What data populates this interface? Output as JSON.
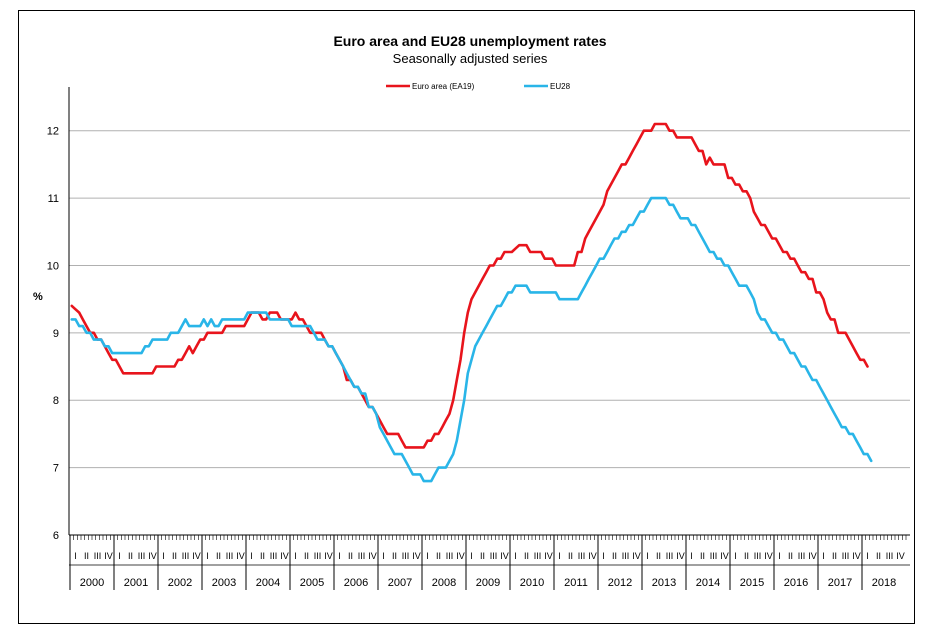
{
  "chart_data": {
    "type": "line",
    "title": "Euro area and EU28 unemployment rates",
    "subtitle": "Seasonally adjusted series",
    "ylabel": "%",
    "ylim": [
      6,
      12.5
    ],
    "yticks": [
      "6",
      "7",
      "8",
      "9",
      "10",
      "11",
      "12"
    ],
    "grid": true,
    "legend_position": "top-center",
    "quarter_labels": [
      "I",
      "II",
      "III",
      "IV"
    ],
    "years": [
      "2000",
      "2001",
      "2002",
      "2003",
      "2004",
      "2005",
      "2006",
      "2007",
      "2008",
      "2009",
      "2010",
      "2011",
      "2012",
      "2013",
      "2014",
      "2015",
      "2016",
      "2017",
      "2018"
    ],
    "x_start": "2000-01",
    "series": [
      {
        "name": "Euro area (EA19)",
        "color": "#e8141c",
        "values": [
          9.4,
          9.35,
          9.3,
          9.2,
          9.1,
          9.0,
          9.0,
          8.9,
          8.9,
          8.8,
          8.7,
          8.6,
          8.6,
          8.5,
          8.4,
          8.4,
          8.4,
          8.4,
          8.4,
          8.4,
          8.4,
          8.4,
          8.4,
          8.5,
          8.5,
          8.5,
          8.5,
          8.5,
          8.5,
          8.6,
          8.6,
          8.7,
          8.8,
          8.7,
          8.8,
          8.9,
          8.9,
          9.0,
          9.0,
          9.0,
          9.0,
          9.0,
          9.1,
          9.1,
          9.1,
          9.1,
          9.1,
          9.1,
          9.2,
          9.3,
          9.3,
          9.3,
          9.2,
          9.2,
          9.3,
          9.3,
          9.3,
          9.2,
          9.2,
          9.2,
          9.2,
          9.3,
          9.2,
          9.2,
          9.1,
          9.0,
          9.0,
          9.0,
          9.0,
          8.9,
          8.8,
          8.8,
          8.7,
          8.6,
          8.5,
          8.3,
          8.3,
          8.2,
          8.2,
          8.1,
          8.0,
          7.9,
          7.9,
          7.8,
          7.7,
          7.6,
          7.5,
          7.5,
          7.5,
          7.5,
          7.4,
          7.3,
          7.3,
          7.3,
          7.3,
          7.3,
          7.3,
          7.4,
          7.4,
          7.5,
          7.5,
          7.6,
          7.7,
          7.8,
          8.0,
          8.3,
          8.6,
          9.0,
          9.3,
          9.5,
          9.6,
          9.7,
          9.8,
          9.9,
          10.0,
          10.0,
          10.1,
          10.1,
          10.2,
          10.2,
          10.2,
          10.25,
          10.3,
          10.3,
          10.3,
          10.2,
          10.2,
          10.2,
          10.2,
          10.1,
          10.1,
          10.1,
          10.0,
          10.0,
          10.0,
          10.0,
          10.0,
          10.0,
          10.2,
          10.2,
          10.4,
          10.5,
          10.6,
          10.7,
          10.8,
          10.9,
          11.1,
          11.2,
          11.3,
          11.4,
          11.5,
          11.5,
          11.6,
          11.7,
          11.8,
          11.9,
          12.0,
          12.0,
          12.0,
          12.1,
          12.1,
          12.1,
          12.1,
          12.0,
          12.0,
          11.9,
          11.9,
          11.9,
          11.9,
          11.9,
          11.8,
          11.7,
          11.7,
          11.5,
          11.6,
          11.5,
          11.5,
          11.5,
          11.5,
          11.3,
          11.3,
          11.2,
          11.2,
          11.1,
          11.1,
          11.0,
          10.8,
          10.7,
          10.6,
          10.6,
          10.5,
          10.4,
          10.4,
          10.3,
          10.2,
          10.2,
          10.1,
          10.1,
          10.0,
          9.9,
          9.9,
          9.8,
          9.8,
          9.6,
          9.6,
          9.5,
          9.3,
          9.2,
          9.2,
          9.0,
          9.0,
          9.0,
          8.9,
          8.8,
          8.7,
          8.6,
          8.6,
          8.5
        ]
      },
      {
        "name": "EU28",
        "color": "#29b5e8",
        "values": [
          9.2,
          9.2,
          9.1,
          9.1,
          9.0,
          9.0,
          8.9,
          8.9,
          8.9,
          8.8,
          8.8,
          8.7,
          8.7,
          8.7,
          8.7,
          8.7,
          8.7,
          8.7,
          8.7,
          8.7,
          8.8,
          8.8,
          8.9,
          8.9,
          8.9,
          8.9,
          8.9,
          9.0,
          9.0,
          9.0,
          9.1,
          9.2,
          9.1,
          9.1,
          9.1,
          9.1,
          9.2,
          9.1,
          9.2,
          9.1,
          9.1,
          9.2,
          9.2,
          9.2,
          9.2,
          9.2,
          9.2,
          9.2,
          9.3,
          9.3,
          9.3,
          9.3,
          9.3,
          9.3,
          9.2,
          9.2,
          9.2,
          9.2,
          9.2,
          9.2,
          9.1,
          9.1,
          9.1,
          9.1,
          9.1,
          9.1,
          9.0,
          8.9,
          8.9,
          8.9,
          8.8,
          8.8,
          8.7,
          8.6,
          8.5,
          8.4,
          8.3,
          8.2,
          8.2,
          8.1,
          8.1,
          7.9,
          7.9,
          7.8,
          7.6,
          7.5,
          7.4,
          7.3,
          7.2,
          7.2,
          7.2,
          7.1,
          7.0,
          6.9,
          6.9,
          6.9,
          6.8,
          6.8,
          6.8,
          6.9,
          7.0,
          7.0,
          7.0,
          7.1,
          7.2,
          7.4,
          7.7,
          8.0,
          8.4,
          8.6,
          8.8,
          8.9,
          9.0,
          9.1,
          9.2,
          9.3,
          9.4,
          9.4,
          9.5,
          9.6,
          9.6,
          9.7,
          9.7,
          9.7,
          9.7,
          9.6,
          9.6,
          9.6,
          9.6,
          9.6,
          9.6,
          9.6,
          9.6,
          9.5,
          9.5,
          9.5,
          9.5,
          9.5,
          9.5,
          9.6,
          9.7,
          9.8,
          9.9,
          10.0,
          10.1,
          10.1,
          10.2,
          10.3,
          10.4,
          10.4,
          10.5,
          10.5,
          10.6,
          10.6,
          10.7,
          10.8,
          10.8,
          10.9,
          11.0,
          11.0,
          11.0,
          11.0,
          11.0,
          10.9,
          10.9,
          10.8,
          10.7,
          10.7,
          10.7,
          10.6,
          10.6,
          10.5,
          10.4,
          10.3,
          10.2,
          10.2,
          10.1,
          10.1,
          10.0,
          10.0,
          9.9,
          9.8,
          9.7,
          9.7,
          9.7,
          9.6,
          9.5,
          9.3,
          9.2,
          9.2,
          9.1,
          9.0,
          9.0,
          8.9,
          8.9,
          8.8,
          8.7,
          8.7,
          8.6,
          8.5,
          8.5,
          8.4,
          8.3,
          8.3,
          8.2,
          8.1,
          8.0,
          7.9,
          7.8,
          7.7,
          7.6,
          7.6,
          7.5,
          7.5,
          7.4,
          7.3,
          7.2,
          7.2,
          7.1
        ]
      }
    ]
  }
}
